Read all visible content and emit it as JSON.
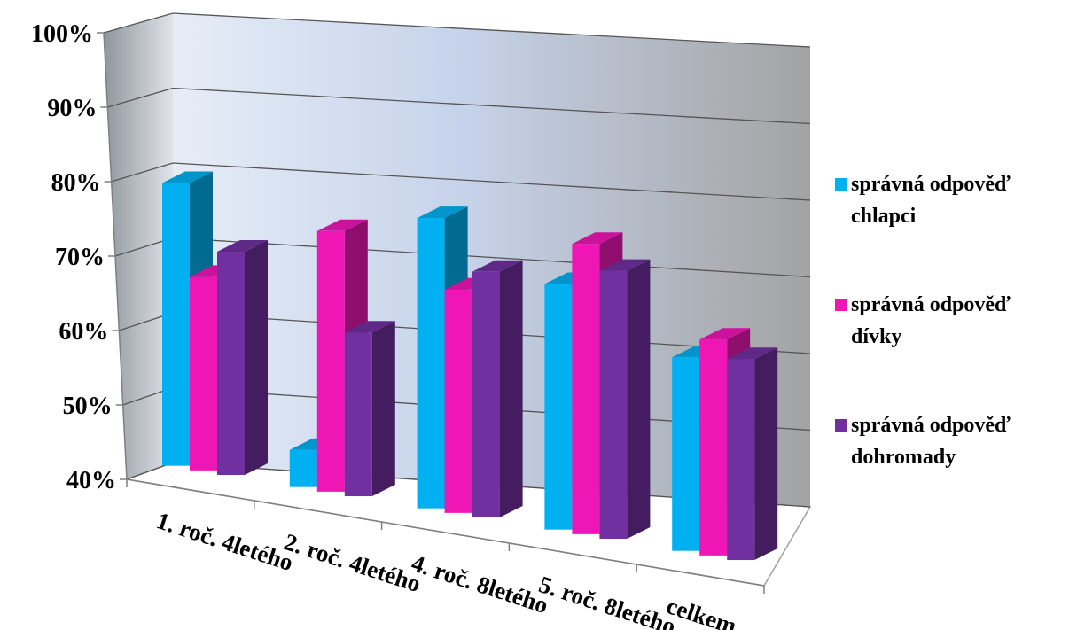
{
  "chart_data": {
    "type": "bar",
    "categories": [
      "1. roč. 4letého",
      "2. roč. 4letého",
      "4. roč. 8letého",
      "5. roč. 8letého",
      "celkem"
    ],
    "series": [
      {
        "name": "správná odpověď chlapci",
        "values": [
          78,
          45,
          79,
          73,
          66
        ],
        "color": "#00b0f0"
      },
      {
        "name": "správná odpověď dívky",
        "values": [
          66,
          75,
          70,
          79,
          69
        ],
        "color": "#ee16b5"
      },
      {
        "name": "správná odpověď dohromady",
        "values": [
          70,
          62,
          73,
          76,
          67
        ],
        "color": "#7030a0"
      }
    ],
    "yticks": [
      "40%",
      "50%",
      "60%",
      "70%",
      "80%",
      "90%",
      "100%"
    ],
    "ylim": [
      40,
      100
    ],
    "grid": true,
    "legend_position": "right",
    "style": "3d-column"
  },
  "legend": {
    "items": [
      {
        "label": "správná odpověď\nchlapci",
        "color": "#00b0f0"
      },
      {
        "label": " správná odpověď\ndívky",
        "color": "#ee16b5"
      },
      {
        "label": "správná odpověď\ndohromady",
        "color": "#7030a0"
      }
    ]
  }
}
